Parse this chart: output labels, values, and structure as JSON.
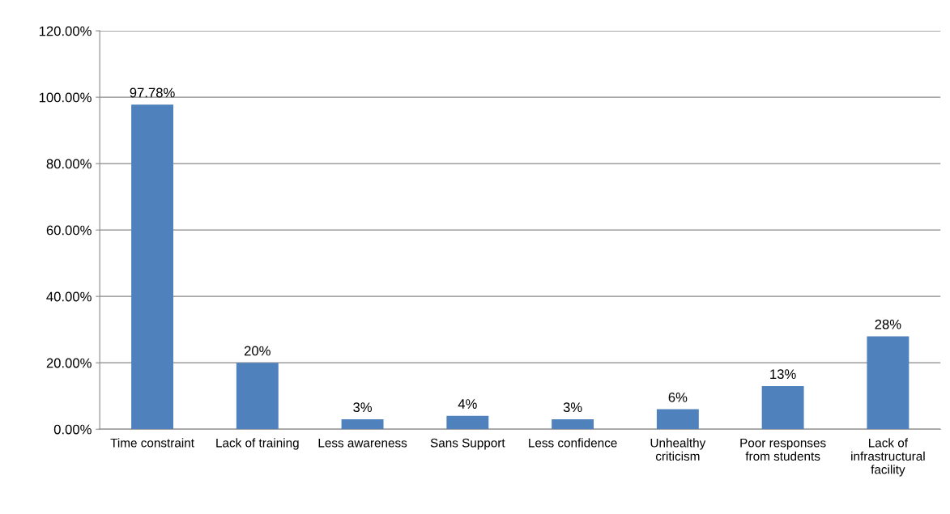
{
  "chart_data": {
    "type": "bar",
    "categories": [
      "Time constraint",
      "Lack of training",
      "Less awareness",
      "Sans Support",
      "Less confidence",
      "Unhealthy\ncriticism",
      "Poor responses\nfrom students",
      "Lack of\ninfrastructural\nfacility"
    ],
    "values": [
      97.78,
      20,
      3,
      4,
      3,
      6,
      13,
      28
    ],
    "value_labels": [
      "97.78%",
      "20%",
      "3%",
      "4%",
      "3%",
      "6%",
      "13%",
      "28%"
    ],
    "color": "#4f81bd",
    "ylim": [
      0,
      120
    ],
    "yticks": [
      {
        "value": 0,
        "label": "0.00%"
      },
      {
        "value": 20,
        "label": "20.00%"
      },
      {
        "value": 40,
        "label": "40.00%"
      },
      {
        "value": 60,
        "label": "60.00%"
      },
      {
        "value": 80,
        "label": "80.00%"
      },
      {
        "value": 100,
        "label": "100.00%"
      },
      {
        "value": 120,
        "label": "120.00%"
      }
    ],
    "grid": "y",
    "legend": false
  }
}
